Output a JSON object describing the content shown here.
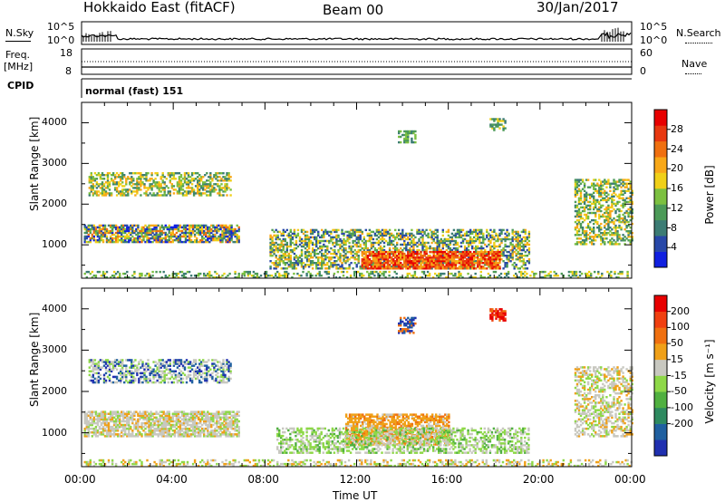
{
  "header": {
    "title": "Hokkaido East (fitACF)",
    "beam": "Beam 00",
    "date": "30/Jan/2017"
  },
  "left_labels": {
    "nsky": "N.Sky",
    "nsky_top": "10^5",
    "nsky_bot": "10^0",
    "freq": "Freq.",
    "freq_unit": "[MHz]",
    "freq_top": "18",
    "freq_bot": "8",
    "cpid": "CPID"
  },
  "right_labels": {
    "nsearch": "N.Search",
    "nsearch_top": "10^5",
    "nsearch_bot": "10^0",
    "nave": "Nave",
    "nave_top": "60",
    "nave_bot": "0"
  },
  "cpid_text": "normal (fast) 151",
  "colors": {
    "white": "#ffffff"
  },
  "chart_data": [
    {
      "type": "heatmap",
      "panel": "power",
      "ylabel": "Slant Range [km]",
      "yticks": [
        "1000",
        "2000",
        "3000",
        "4000"
      ],
      "ylim": [
        180,
        4500
      ],
      "colorbar": {
        "label": "Power [dB]",
        "ticks": [
          "4",
          "8",
          "12",
          "16",
          "20",
          "24",
          "28"
        ],
        "colors": [
          "#1020e0",
          "#2848a8",
          "#3c7c74",
          "#4c9a58",
          "#7cc040",
          "#f0d018",
          "#f8a818",
          "#f07010",
          "#e83810",
          "#e80000"
        ]
      }
    },
    {
      "type": "heatmap",
      "panel": "velocity",
      "ylabel": "Slant Range [km]",
      "yticks": [
        "1000",
        "2000",
        "3000",
        "4000"
      ],
      "ylim": [
        180,
        4500
      ],
      "colorbar": {
        "label": "Velocity [m s⁻¹]",
        "ticks": [
          "200",
          "100",
          "50",
          "15",
          "-15",
          "-50",
          "-100",
          "-200"
        ],
        "colors": [
          "#2030b0",
          "#2060a0",
          "#2e8a60",
          "#50b040",
          "#8ed848",
          "#c8c8c0",
          "#f0a018",
          "#f07010",
          "#f04010",
          "#e80000"
        ]
      },
      "xlabel": "Time UT",
      "xticks": [
        "00:00",
        "04:00",
        "08:00",
        "12:00",
        "16:00",
        "20:00",
        "00:00"
      ]
    }
  ]
}
